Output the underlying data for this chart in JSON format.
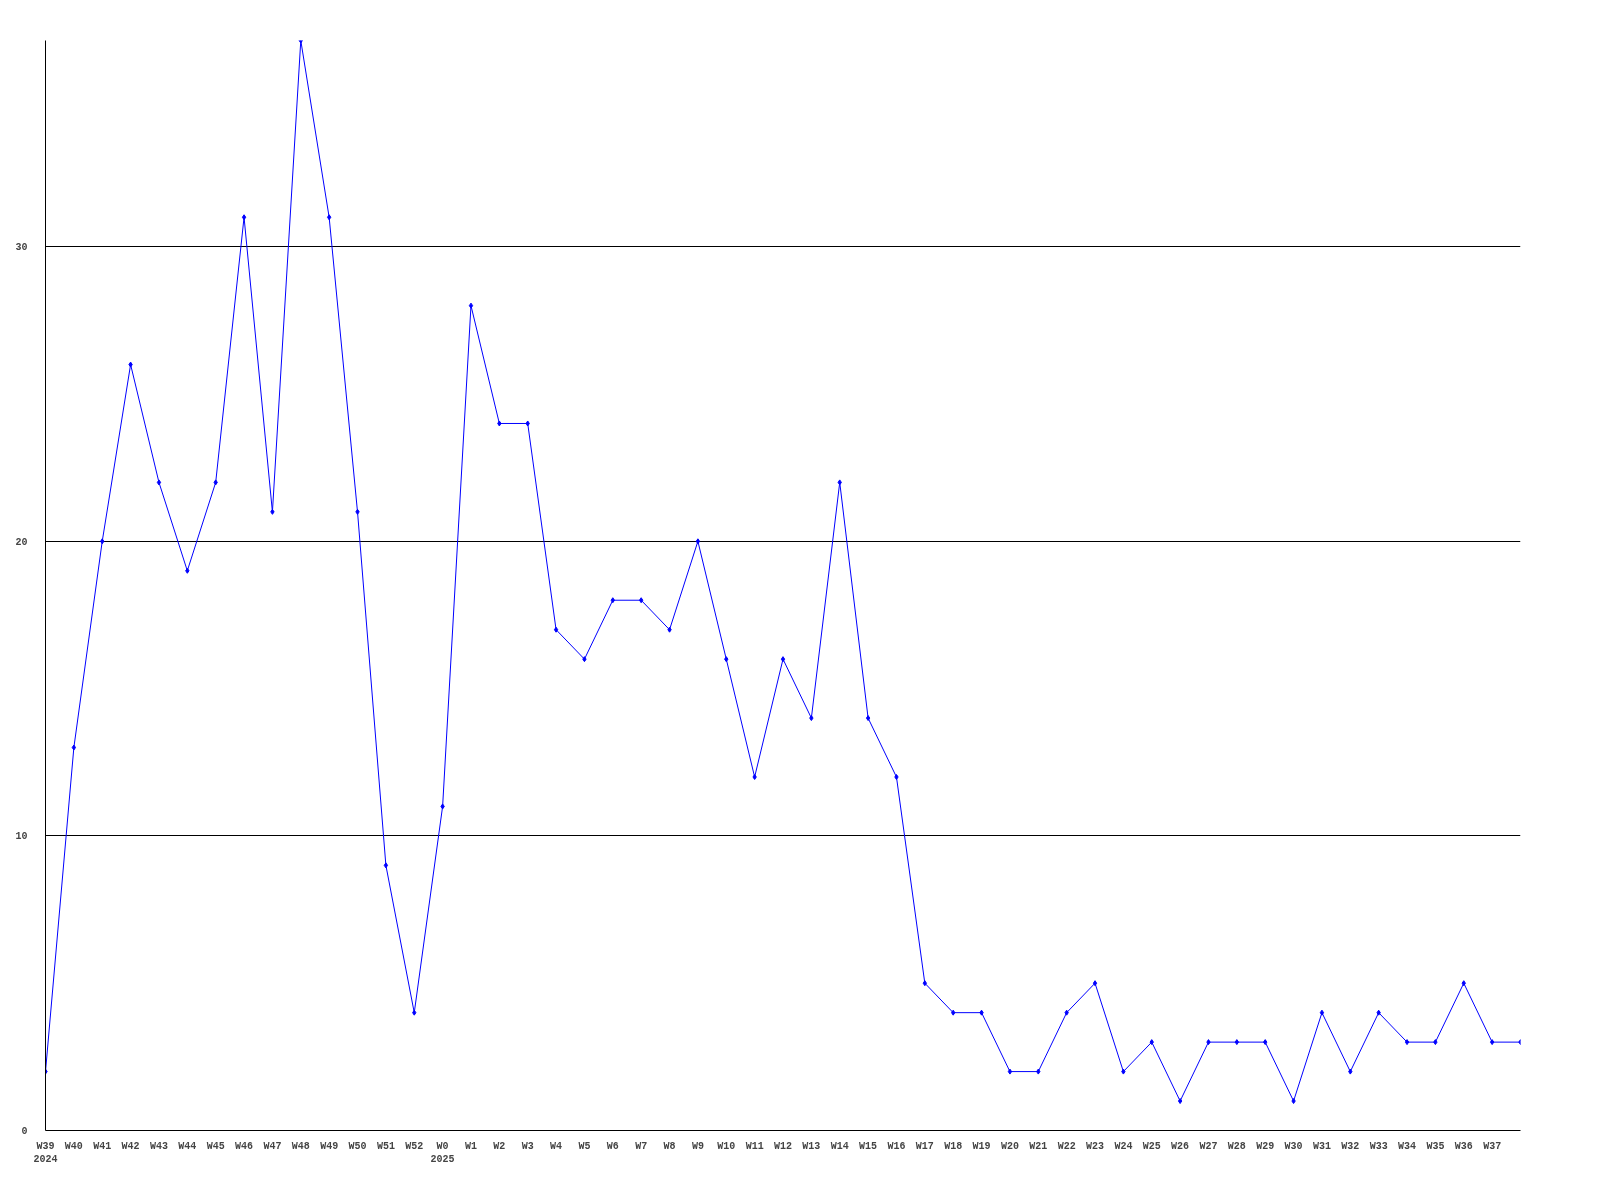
{
  "chart_data": {
    "type": "line",
    "categories": [
      "W39\n2024",
      "W40",
      "W41",
      "W42",
      "W43",
      "W44",
      "W45",
      "W46",
      "W47",
      "W48",
      "W49",
      "W50",
      "W51",
      "W52",
      "W0\n2025",
      "W1",
      "W2",
      "W3",
      "W4",
      "W5",
      "W6",
      "W7",
      "W8",
      "W9",
      "W10",
      "W11",
      "W12",
      "W13",
      "W14",
      "W15",
      "W16",
      "W17",
      "W18",
      "W19",
      "W20",
      "W21",
      "W22",
      "W23",
      "W24",
      "W25",
      "W26",
      "W27",
      "W28",
      "W29",
      "W30",
      "W31",
      "W32",
      "W33",
      "W34",
      "W35",
      "W36",
      "W37",
      null
    ],
    "series": [
      {
        "color": "#0000ff",
        "values": [
          2,
          13,
          20,
          26,
          22,
          19,
          22,
          31,
          21,
          37,
          31,
          21,
          9,
          4,
          11,
          28,
          24,
          24,
          17,
          16,
          18,
          18,
          17,
          20,
          16,
          12,
          16,
          14,
          22,
          14,
          12,
          5,
          4,
          4,
          2,
          2,
          4,
          5,
          2,
          3,
          1,
          3,
          3,
          3,
          1,
          4,
          2,
          4,
          3,
          3,
          5,
          3,
          3
        ]
      }
    ],
    "ylim": [
      0,
      37
    ],
    "yticks": [
      0,
      10,
      20,
      30
    ],
    "grid": "y",
    "marker": "diamond",
    "line_style": "solid"
  }
}
